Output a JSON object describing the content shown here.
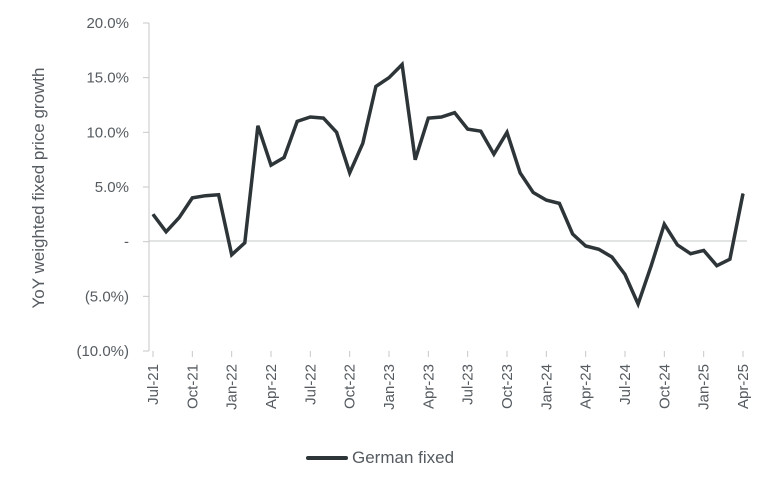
{
  "chart_data": {
    "type": "line",
    "ylabel": "YoY weighted fixed price growth",
    "xlabel": "",
    "ylim": [
      -10,
      20
    ],
    "y_ticks": [
      {
        "value": 20,
        "label": "20.0%"
      },
      {
        "value": 15,
        "label": "15.0%"
      },
      {
        "value": 10,
        "label": "10.0%"
      },
      {
        "value": 5,
        "label": "5.0%"
      },
      {
        "value": 0,
        "label": "-"
      },
      {
        "value": -5,
        "label": "(5.0%)"
      },
      {
        "value": -10,
        "label": "(10.0%)"
      }
    ],
    "x_tick_labels": [
      "Jul-21",
      "Oct-21",
      "Jan-22",
      "Apr-22",
      "Jul-22",
      "Oct-22",
      "Jan-23",
      "Apr-23",
      "Jul-23",
      "Oct-23",
      "Jan-24",
      "Apr-24",
      "Jul-24",
      "Oct-24",
      "Jan-25",
      "Apr-25"
    ],
    "x": [
      "Jul-21",
      "Aug-21",
      "Sep-21",
      "Oct-21",
      "Nov-21",
      "Dec-21",
      "Jan-22",
      "Feb-22",
      "Mar-22",
      "Apr-22",
      "May-22",
      "Jun-22",
      "Jul-22",
      "Aug-22",
      "Sep-22",
      "Oct-22",
      "Nov-22",
      "Dec-22",
      "Jan-23",
      "Feb-23",
      "Mar-23",
      "Apr-23",
      "May-23",
      "Jun-23",
      "Jul-23",
      "Aug-23",
      "Sep-23",
      "Oct-23",
      "Nov-23",
      "Dec-23",
      "Jan-24",
      "Feb-24",
      "Mar-24",
      "Apr-24",
      "May-24",
      "Jun-24",
      "Jul-24",
      "Aug-24",
      "Sep-24",
      "Oct-24",
      "Nov-24",
      "Dec-24",
      "Jan-25",
      "Feb-25",
      "Mar-25",
      "Apr-25"
    ],
    "series": [
      {
        "name": "German fixed",
        "color": "#2e3538",
        "values": [
          2.5,
          0.9,
          2.2,
          4.0,
          4.2,
          4.3,
          -1.2,
          -0.1,
          10.6,
          7.0,
          7.7,
          11.0,
          11.4,
          11.3,
          10.0,
          6.3,
          9.0,
          14.2,
          15.0,
          16.2,
          7.5,
          11.3,
          11.4,
          11.8,
          10.3,
          10.1,
          8.0,
          10.0,
          6.3,
          4.5,
          3.8,
          3.5,
          0.7,
          -0.4,
          -0.7,
          -1.4,
          -3.0,
          -5.7,
          -2.2,
          1.6,
          -0.3,
          -1.1,
          -0.8,
          -2.2,
          -1.6,
          4.4
        ]
      }
    ],
    "grid": false,
    "legend_position": "bottom"
  }
}
